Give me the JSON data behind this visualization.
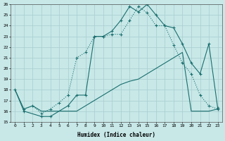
{
  "xlabel": "Humidex (Indice chaleur)",
  "background_color": "#c8e8e8",
  "grid_color": "#a8cccc",
  "line_color": "#1a6e6e",
  "xlim_min": -0.5,
  "xlim_max": 23.5,
  "ylim_min": 15,
  "ylim_max": 26,
  "yticks": [
    15,
    16,
    17,
    18,
    19,
    20,
    21,
    22,
    23,
    24,
    25,
    26
  ],
  "xticks": [
    0,
    1,
    2,
    3,
    4,
    5,
    6,
    7,
    8,
    9,
    10,
    11,
    12,
    13,
    14,
    15,
    16,
    17,
    18,
    19,
    20,
    21,
    22,
    23
  ],
  "line1_x": [
    0,
    1,
    3,
    4,
    6,
    7,
    8,
    9,
    10,
    11,
    12,
    13,
    14,
    15,
    16,
    17,
    18,
    19,
    20,
    21,
    22,
    23
  ],
  "line1_y": [
    18,
    16,
    15.5,
    15.5,
    16.5,
    17.5,
    17.5,
    23,
    23,
    23.5,
    24.5,
    25.8,
    25.3,
    26.0,
    25.0,
    24.0,
    23.8,
    22.3,
    20.5,
    19.5,
    22.3,
    16.3
  ],
  "line2_x": [
    1,
    2,
    3,
    4,
    5,
    6,
    7,
    8,
    9,
    10,
    11,
    12,
    13,
    14,
    15,
    16,
    17,
    18,
    19,
    20,
    21,
    22,
    23
  ],
  "line2_y": [
    16.2,
    16.5,
    15.8,
    16.2,
    16.8,
    17.5,
    21.0,
    21.5,
    23.0,
    23.0,
    23.2,
    23.2,
    24.5,
    25.8,
    25.2,
    24.0,
    24.0,
    22.2,
    20.5,
    19.5,
    17.5,
    16.5,
    16.2
  ],
  "line3_x": [
    0,
    1,
    2,
    3,
    4,
    5,
    6,
    7,
    8,
    9,
    10,
    11,
    12,
    13,
    14,
    15,
    16,
    17,
    18,
    19,
    20,
    21,
    22,
    23
  ],
  "line3_y": [
    18,
    16.2,
    16.5,
    16.0,
    16.0,
    16.0,
    16.0,
    16.0,
    16.5,
    17.0,
    17.5,
    18.0,
    18.5,
    18.8,
    19.0,
    19.5,
    20.0,
    20.5,
    21.0,
    21.5,
    16.0,
    16.0,
    16.0,
    16.2
  ]
}
